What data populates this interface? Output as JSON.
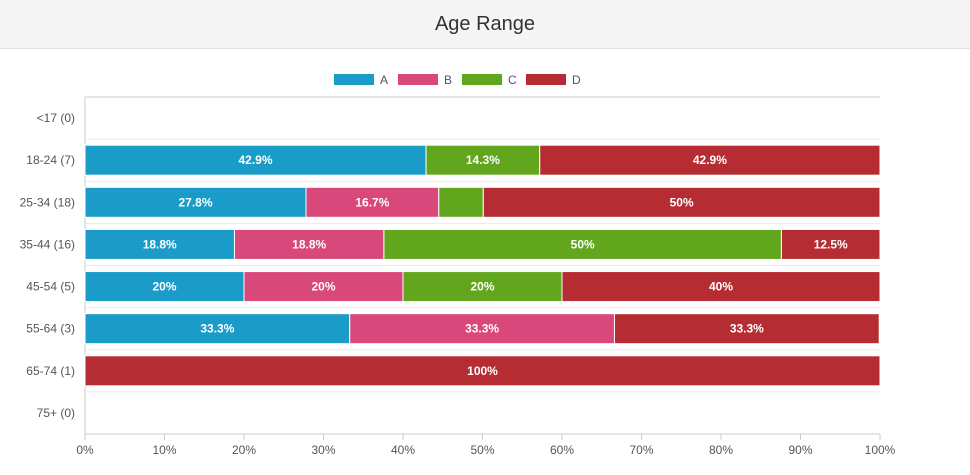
{
  "header": {
    "title": "Age Range"
  },
  "chart_data": {
    "type": "bar",
    "orientation": "horizontal",
    "stacked": "percent",
    "title": "Age Range",
    "categories": [
      "<17 (0)",
      "18-24 (7)",
      "25-34 (18)",
      "35-44 (16)",
      "45-54 (5)",
      "55-64 (3)",
      "65-74 (1)",
      "75+ (0)"
    ],
    "series": [
      {
        "name": "A",
        "color": "#1a9bc8",
        "values": [
          0,
          42.9,
          27.8,
          18.8,
          20,
          33.3,
          0,
          0
        ],
        "labels": [
          "",
          "42.9%",
          "27.8%",
          "18.8%",
          "20%",
          "33.3%",
          "",
          ""
        ]
      },
      {
        "name": "B",
        "color": "#d9487a",
        "values": [
          0,
          0,
          16.7,
          18.8,
          20,
          33.3,
          0,
          0
        ],
        "labels": [
          "",
          "",
          "16.7%",
          "18.8%",
          "20%",
          "33.3%",
          "",
          ""
        ]
      },
      {
        "name": "C",
        "color": "#62a61e",
        "values": [
          0,
          14.3,
          5.6,
          50,
          20,
          0,
          0,
          0
        ],
        "labels": [
          "",
          "14.3%",
          "",
          "50%",
          "20%",
          "",
          "",
          ""
        ]
      },
      {
        "name": "D",
        "color": "#b52d32",
        "values": [
          0,
          42.9,
          50,
          12.5,
          40,
          33.3,
          100,
          0
        ],
        "labels": [
          "",
          "42.9%",
          "50%",
          "12.5%",
          "40%",
          "33.3%",
          "100%",
          ""
        ]
      }
    ],
    "x_ticks": [
      "0%",
      "10%",
      "20%",
      "30%",
      "40%",
      "50%",
      "60%",
      "70%",
      "80%",
      "90%",
      "100%"
    ],
    "xlim": [
      0,
      100
    ],
    "grid": true,
    "legend": "top-center"
  }
}
